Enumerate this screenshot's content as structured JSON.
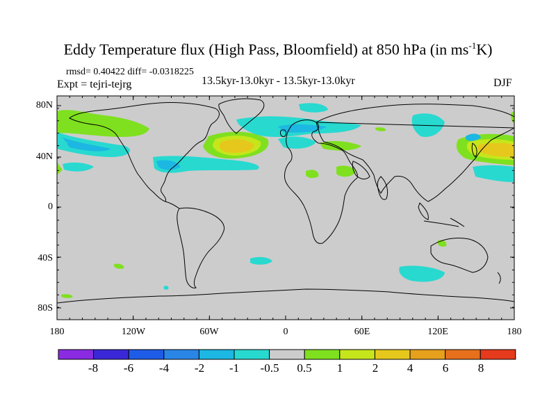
{
  "title_main": "Eddy Temperature flux (High Pass, Bloomfield) at 850 hPa (in ms",
  "title_sup": "-1",
  "title_end": "K)",
  "stats": "rmsd= 0.40422 diff= -0.0318225",
  "expt": "Expt = tejri-tejrg",
  "period": "13.5kyr-13.0kyr - 13.5kyr-13.0kyr",
  "season": "DJF",
  "lat_labels": [
    "80N",
    "40N",
    "0",
    "40S",
    "80S"
  ],
  "lon_labels": [
    "180",
    "120W",
    "60W",
    "0",
    "60E",
    "120E",
    "180"
  ],
  "colorbar_labels": [
    "-8",
    "-6",
    "-4",
    "-2",
    "-1",
    "-0.5",
    "0.5",
    "1",
    "2",
    "4",
    "6",
    "8"
  ],
  "colors": {
    "background_field": "#cccccc",
    "bins": [
      "#8a2be2",
      "#3a28d8",
      "#1e5be6",
      "#2a86e6",
      "#1cb7e2",
      "#28d9d0",
      "#cccccc",
      "#7fe01f",
      "#c6e61c",
      "#e6c81c",
      "#e6a01c",
      "#e6701c",
      "#e63a1c"
    ]
  }
}
